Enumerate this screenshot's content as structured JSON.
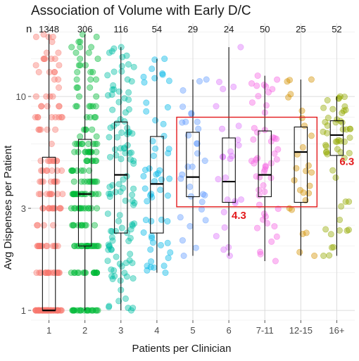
{
  "chart_data": {
    "type": "boxplot_with_jitter",
    "title": "Association of Volume with Early D/C",
    "xlabel": "Patients per Clinician",
    "ylabel": "Avg Dispenses per Patient",
    "y_scale": "log10",
    "ylim": [
      0.9,
      22
    ],
    "y_ticks": [
      1,
      3,
      10
    ],
    "y_tick_labels": [
      "1",
      "3",
      "10"
    ],
    "n_label": "n",
    "grid": true,
    "legend": "none",
    "categories": [
      "1",
      "2",
      "3",
      "4",
      "5",
      "6",
      "7-11",
      "12-15",
      "16+"
    ],
    "counts": [
      "1348",
      "306",
      "116",
      "54",
      "29",
      "24",
      "50",
      "25",
      "52"
    ],
    "colors": [
      "#F8766D",
      "#00BA38",
      "#00BFA5",
      "#00B8E7",
      "#619CFF",
      "#DB72FB",
      "#F564E3",
      "#D39200",
      "#93AA00"
    ],
    "boxes": [
      {
        "min": 1.0,
        "q1": 1.0,
        "median": 1.0,
        "q3": 5.2,
        "max": 19.5
      },
      {
        "min": 1.0,
        "q1": 2.0,
        "median": 3.5,
        "q3": 6.3,
        "max": 19.5
      },
      {
        "min": 1.0,
        "q1": 2.3,
        "median": 4.3,
        "q3": 7.6,
        "max": 17.0
      },
      {
        "min": 1.5,
        "q1": 2.3,
        "median": 3.9,
        "q3": 6.5,
        "max": 15.0
      },
      {
        "min": 1.8,
        "q1": 3.4,
        "median": 4.2,
        "q3": 6.8,
        "max": 12.0
      },
      {
        "min": 1.8,
        "q1": 3.2,
        "median": 4.0,
        "q3": 6.4,
        "max": 17.0
      },
      {
        "min": 1.7,
        "q1": 3.4,
        "median": 4.3,
        "q3": 6.9,
        "max": 12.5
      },
      {
        "min": 1.8,
        "q1": 3.2,
        "median": 5.5,
        "q3": 7.2,
        "max": 12.0
      },
      {
        "min": 1.8,
        "q1": 5.3,
        "median": 6.6,
        "q3": 7.7,
        "max": 10.0
      }
    ],
    "highlight": {
      "from_category": "5",
      "to_category": "12-15",
      "y_range": [
        3.05,
        8.0
      ],
      "color": "#e31a1c"
    },
    "annotations": [
      {
        "text": "4.3",
        "x_category": "6",
        "y": 2.8,
        "color": "#e31a1c"
      },
      {
        "text": "6.3",
        "x_category": "16+",
        "y": 5.0,
        "color": "#e31a1c"
      }
    ]
  }
}
